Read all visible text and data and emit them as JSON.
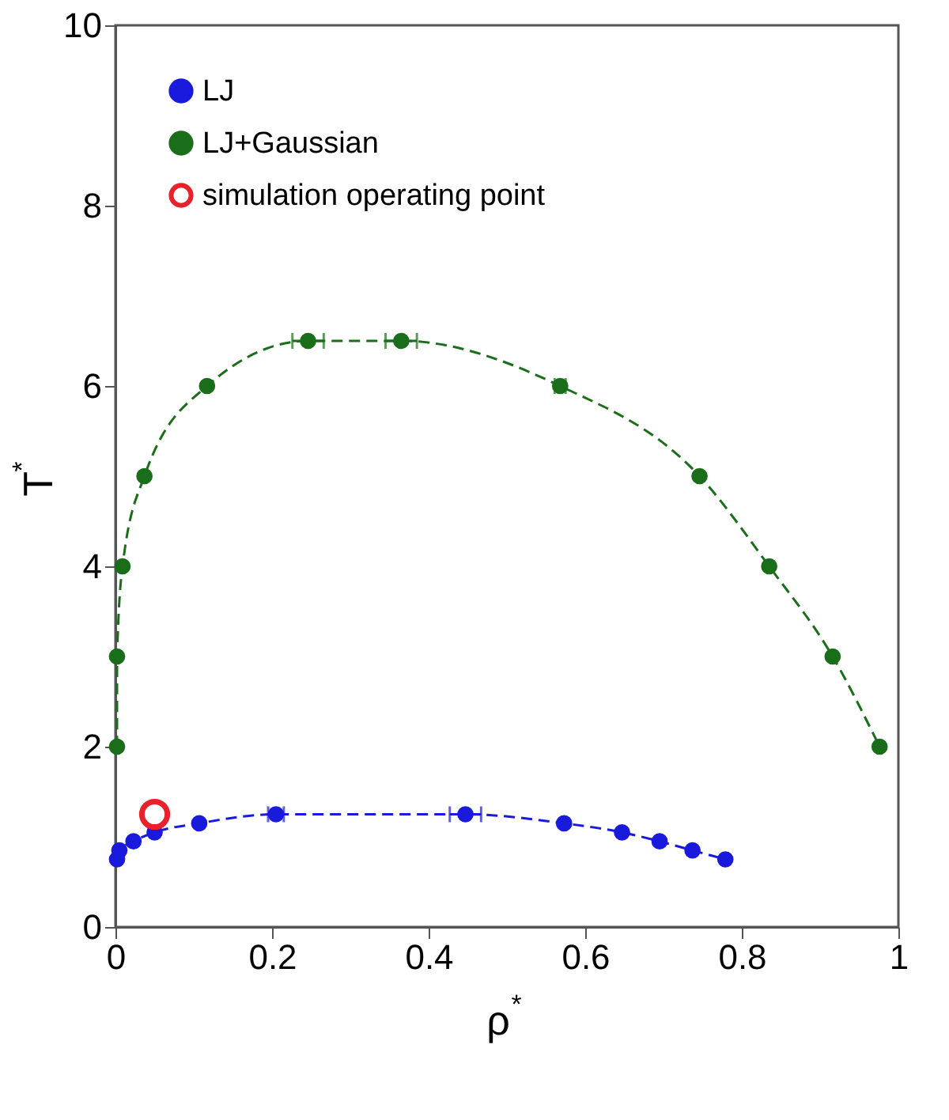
{
  "chart_data": {
    "type": "line",
    "xlabel": "ρ$^{*}$",
    "ylabel": "T$^{*}$",
    "xlim": [
      0,
      1
    ],
    "ylim": [
      0,
      10
    ],
    "xticks": [
      0,
      0.2,
      0.4,
      0.6,
      0.8,
      1
    ],
    "yticks": [
      0,
      2,
      4,
      6,
      8,
      10
    ],
    "grid": false,
    "legend": "top left",
    "marker": "circle",
    "series": [
      {
        "name": "LJ",
        "type": "line",
        "line_style": "dashed",
        "color": "#1a1adc",
        "x": [
          0.002,
          0.005,
          0.023,
          0.05,
          0.107,
          0.205,
          0.447,
          0.573,
          0.647,
          0.695,
          0.737,
          0.779
        ],
        "values": [
          0.75,
          0.85,
          0.95,
          1.05,
          1.15,
          1.25,
          1.25,
          1.15,
          1.05,
          0.95,
          0.85,
          0.75
        ],
        "xerrors": [
          null,
          null,
          null,
          null,
          null,
          0.01,
          0.02,
          null,
          null,
          null,
          null,
          null
        ]
      },
      {
        "name": "LJ+Gaussian",
        "type": "line",
        "line_style": "dashed",
        "color": "#1a6e1a",
        "x": [
          0.002,
          0.002,
          0.009,
          0.037,
          0.117,
          0.246,
          0.365,
          0.568,
          0.746,
          0.835,
          0.916,
          0.976
        ],
        "values": [
          2,
          3,
          4,
          5,
          6,
          6.5,
          6.5,
          6,
          5,
          4,
          3,
          2
        ],
        "xerrors": [
          null,
          null,
          null,
          null,
          null,
          0.02,
          0.02,
          0.007,
          null,
          null,
          null,
          null
        ]
      },
      {
        "name": "simulation operating point",
        "type": "scatter",
        "color": "#e8212a",
        "x": [
          0.05
        ],
        "values": [
          1.25
        ]
      }
    ]
  }
}
